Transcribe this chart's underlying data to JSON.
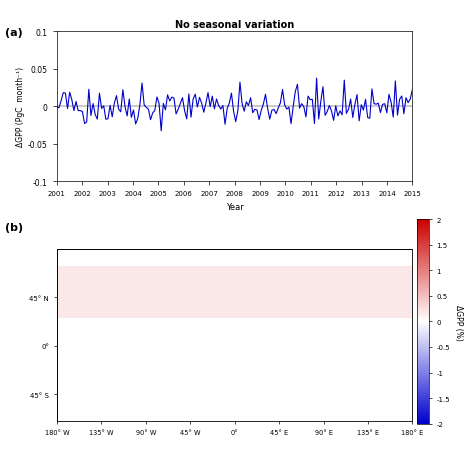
{
  "title": "No seasonal variation",
  "panel_a_label": "(a)",
  "panel_b_label": "(b)",
  "line_color": "#0000CC",
  "line_width": 0.8,
  "ylim_a": [
    -0.1,
    0.1
  ],
  "ytick_labels_a": [
    "-0.1",
    "-0.05",
    "0",
    "0.05",
    "0.1"
  ],
  "yticks_a": [
    -0.1,
    -0.05,
    0,
    0.05,
    0.1
  ],
  "xlim_a": [
    2001,
    2015
  ],
  "xticks_a": [
    2001,
    2002,
    2003,
    2004,
    2005,
    2006,
    2007,
    2008,
    2009,
    2010,
    2011,
    2012,
    2013,
    2014,
    2015
  ],
  "xlabel_a": "Year",
  "ylabel_a": "ΔGPP (PgC  month⁻¹)",
  "colorbar_label": "ΔGPP (%)",
  "colorbar_ticks": [
    -2,
    -1.5,
    -1,
    -0.5,
    0,
    0.5,
    1,
    1.5,
    2
  ],
  "colorbar_ticklabels": [
    "-2",
    "-1.5",
    "-1",
    "-0.5",
    "0",
    "0.5",
    "1",
    "1.5",
    "2"
  ],
  "map_xlim": [
    -180,
    180
  ],
  "map_ylim": [
    -70,
    90
  ],
  "map_xticks": [
    -180,
    -135,
    -90,
    -45,
    0,
    45,
    90,
    135,
    180
  ],
  "map_yticks": [
    45,
    0,
    -45
  ],
  "map_ytick_labels": [
    "45° N",
    "0°",
    "45° S"
  ],
  "map_xtick_labels": [
    "180° W",
    "135° W",
    "90° W",
    "45° W",
    "0°",
    "45° E",
    "90° E",
    "135° E",
    "180° E"
  ],
  "background_color": "#ffffff",
  "seed": 42,
  "n_months": 168
}
